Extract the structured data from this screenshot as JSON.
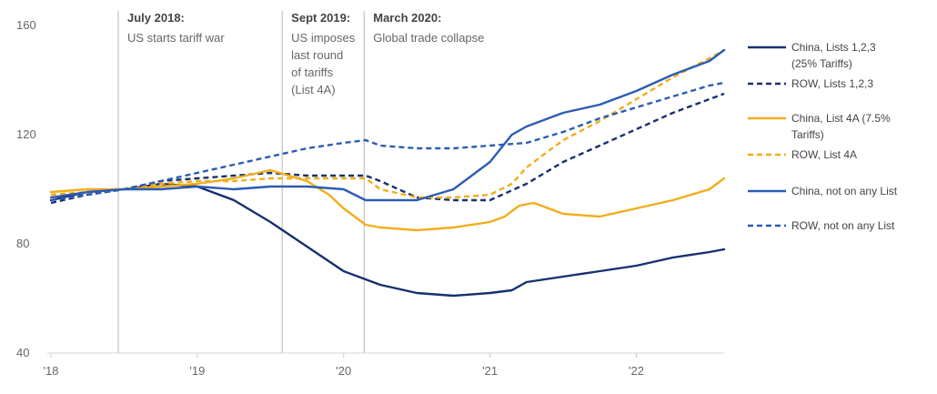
{
  "chart_data": {
    "type": "line",
    "title": "",
    "xlabel": "",
    "ylabel": "",
    "x_ticks": [
      {
        "label": "'18",
        "x": 2018.0
      },
      {
        "label": "'19",
        "x": 2019.0
      },
      {
        "label": "'20",
        "x": 2020.0
      },
      {
        "label": "'21",
        "x": 2021.0
      },
      {
        "label": "'22",
        "x": 2022.0
      }
    ],
    "y_ticks": [
      40,
      80,
      120,
      160
    ],
    "xlim": [
      2018.0,
      2022.6
    ],
    "ylim": [
      40,
      160
    ],
    "events": [
      {
        "x": 2018.46,
        "title": "July 2018:",
        "lines": [
          "US starts tariff war"
        ]
      },
      {
        "x": 2019.58,
        "title": "Sept 2019:",
        "lines": [
          "US imposes",
          "last round",
          "of tariffs",
          "(List 4A)"
        ]
      },
      {
        "x": 2020.14,
        "title": "March 2020:",
        "lines": [
          "Global trade collapse"
        ]
      }
    ],
    "series": [
      {
        "name": "China, Lists 1,2,3 (25% Tariffs)",
        "legend_lines": [
          "China, Lists 1,2,3",
          "(25% Tariffs)"
        ],
        "color": "#17306e",
        "dash": "solid",
        "x": [
          2018.0,
          2018.25,
          2018.5,
          2018.75,
          2019.0,
          2019.25,
          2019.5,
          2019.75,
          2020.0,
          2020.25,
          2020.5,
          2020.75,
          2021.0,
          2021.15,
          2021.25,
          2021.5,
          2021.75,
          2022.0,
          2022.25,
          2022.5,
          2022.6
        ],
        "values": [
          96,
          99,
          100,
          102,
          101,
          96,
          88,
          79,
          70,
          65,
          62,
          61,
          62,
          63,
          66,
          68,
          70,
          72,
          75,
          77,
          78
        ]
      },
      {
        "name": "ROW, Lists 1,2,3",
        "legend_lines": [
          "ROW, Lists 1,2,3"
        ],
        "color": "#17306e",
        "dash": "dashed",
        "x": [
          2018.0,
          2018.25,
          2018.5,
          2018.75,
          2019.0,
          2019.25,
          2019.5,
          2019.75,
          2020.0,
          2020.15,
          2020.25,
          2020.5,
          2020.75,
          2021.0,
          2021.25,
          2021.5,
          2021.75,
          2022.0,
          2022.25,
          2022.5,
          2022.6
        ],
        "values": [
          95,
          98,
          100,
          103,
          104,
          105,
          106,
          105,
          105,
          105,
          103,
          97,
          96,
          96,
          102,
          110,
          116,
          122,
          128,
          133,
          135
        ]
      },
      {
        "name": "China, List 4A (7.5% Tariffs)",
        "legend_lines": [
          "China, List 4A (7.5%",
          "Tariffs)"
        ],
        "color": "#f2ad1c",
        "dash": "solid",
        "x": [
          2018.0,
          2018.25,
          2018.5,
          2018.75,
          2019.0,
          2019.25,
          2019.5,
          2019.75,
          2019.9,
          2020.0,
          2020.15,
          2020.25,
          2020.5,
          2020.75,
          2021.0,
          2021.1,
          2021.2,
          2021.3,
          2021.5,
          2021.75,
          2022.0,
          2022.25,
          2022.5,
          2022.6
        ],
        "values": [
          99,
          100,
          100,
          101,
          102,
          104,
          107,
          103,
          98,
          93,
          87,
          86,
          85,
          86,
          88,
          90,
          94,
          95,
          91,
          90,
          93,
          96,
          100,
          104
        ]
      },
      {
        "name": "ROW, List 4A",
        "legend_lines": [
          "ROW, List 4A"
        ],
        "color": "#f2ad1c",
        "dash": "dashed",
        "x": [
          2018.0,
          2018.25,
          2018.5,
          2018.75,
          2019.0,
          2019.25,
          2019.5,
          2019.75,
          2020.0,
          2020.15,
          2020.25,
          2020.5,
          2020.75,
          2021.0,
          2021.15,
          2021.25,
          2021.5,
          2021.75,
          2022.0,
          2022.25,
          2022.5,
          2022.6
        ],
        "values": [
          98,
          99,
          100,
          102,
          103,
          103,
          104,
          104,
          104,
          104,
          100,
          97,
          97,
          98,
          102,
          108,
          118,
          125,
          133,
          141,
          148,
          151
        ]
      },
      {
        "name": "China, not on any List",
        "legend_lines": [
          "China, not on any List"
        ],
        "color": "#2c5cb4",
        "dash": "solid",
        "x": [
          2018.0,
          2018.25,
          2018.5,
          2018.75,
          2019.0,
          2019.25,
          2019.5,
          2019.75,
          2020.0,
          2020.15,
          2020.25,
          2020.5,
          2020.75,
          2021.0,
          2021.15,
          2021.25,
          2021.5,
          2021.75,
          2022.0,
          2022.25,
          2022.5,
          2022.6
        ],
        "values": [
          97,
          99,
          100,
          100,
          101,
          100,
          101,
          101,
          100,
          96,
          96,
          96,
          100,
          110,
          120,
          123,
          128,
          131,
          136,
          142,
          147,
          151
        ]
      },
      {
        "name": "ROW, not on any List",
        "legend_lines": [
          "ROW, not on any List"
        ],
        "color": "#2c5cb4",
        "dash": "dashed",
        "x": [
          2018.0,
          2018.25,
          2018.5,
          2018.75,
          2019.0,
          2019.25,
          2019.5,
          2019.75,
          2020.0,
          2020.15,
          2020.25,
          2020.5,
          2020.75,
          2021.0,
          2021.25,
          2021.5,
          2021.75,
          2022.0,
          2022.25,
          2022.5,
          2022.6
        ],
        "values": [
          96,
          98,
          100,
          103,
          106,
          109,
          112,
          115,
          117,
          118,
          116,
          115,
          115,
          116,
          117,
          121,
          126,
          130,
          134,
          138,
          139
        ]
      }
    ]
  }
}
